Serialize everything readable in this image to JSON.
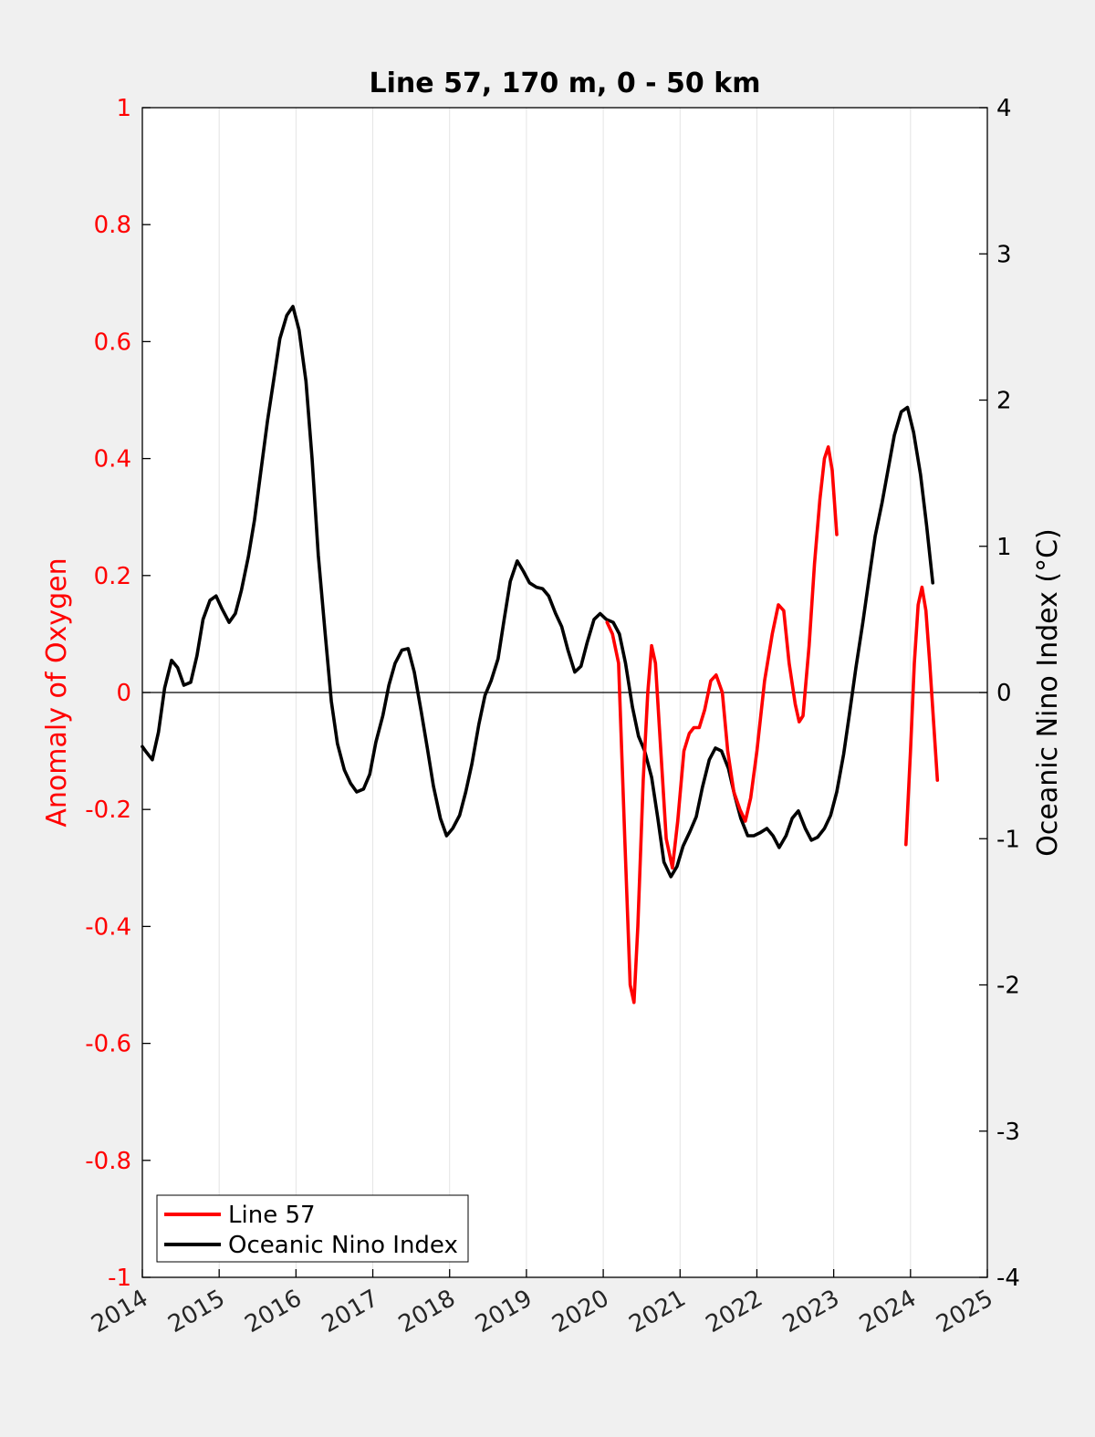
{
  "chart_data": {
    "type": "line",
    "title": "Line 57, 170 m, 0 - 50 km",
    "xlabel": "",
    "ylabel_left": "Anomaly of Oxygen",
    "ylabel_right": "Oceanic Nino Index (°C)",
    "xlim": [
      2014,
      2025
    ],
    "ylim_left": [
      -1,
      1
    ],
    "ylim_right": [
      -4,
      4
    ],
    "x_ticks": [
      "2014",
      "2015",
      "2016",
      "2017",
      "2018",
      "2019",
      "2020",
      "2021",
      "2022",
      "2023",
      "2024",
      "2025"
    ],
    "y_left_ticks": [
      "1",
      "0.8",
      "0.6",
      "0.4",
      "0.2",
      "0",
      "-0.2",
      "-0.4",
      "-0.6",
      "-0.8",
      "-1"
    ],
    "y_right_ticks": [
      "4",
      "3",
      "2",
      "1",
      "0",
      "-1",
      "-2",
      "-3",
      "-4"
    ],
    "grid": "vertical",
    "legend_position": "bottom-left",
    "colors": {
      "line57": "#ff0000",
      "oni": "#000000",
      "left_axis": "#ff0000",
      "right_axis": "#000000"
    },
    "series": [
      {
        "name": "Line 57",
        "axis": "left",
        "color": "#ff0000",
        "segments": [
          [
            [
              2020.05,
              0.12
            ],
            [
              2020.12,
              0.1
            ],
            [
              2020.2,
              0.05
            ],
            [
              2020.28,
              -0.25
            ],
            [
              2020.35,
              -0.5
            ],
            [
              2020.4,
              -0.53
            ],
            [
              2020.45,
              -0.4
            ],
            [
              2020.52,
              -0.15
            ],
            [
              2020.58,
              0.0
            ],
            [
              2020.63,
              0.08
            ],
            [
              2020.68,
              0.05
            ],
            [
              2020.75,
              -0.1
            ],
            [
              2020.82,
              -0.25
            ],
            [
              2020.9,
              -0.3
            ],
            [
              2020.97,
              -0.22
            ],
            [
              2021.05,
              -0.1
            ],
            [
              2021.12,
              -0.07
            ],
            [
              2021.18,
              -0.06
            ],
            [
              2021.25,
              -0.06
            ],
            [
              2021.32,
              -0.03
            ],
            [
              2021.4,
              0.02
            ],
            [
              2021.47,
              0.03
            ],
            [
              2021.55,
              0.0
            ],
            [
              2021.62,
              -0.1
            ],
            [
              2021.7,
              -0.17
            ],
            [
              2021.78,
              -0.2
            ],
            [
              2021.85,
              -0.22
            ],
            [
              2021.92,
              -0.18
            ],
            [
              2022.0,
              -0.1
            ],
            [
              2022.1,
              0.02
            ],
            [
              2022.2,
              0.1
            ],
            [
              2022.28,
              0.15
            ],
            [
              2022.35,
              0.14
            ],
            [
              2022.42,
              0.05
            ],
            [
              2022.5,
              -0.02
            ],
            [
              2022.55,
              -0.05
            ],
            [
              2022.6,
              -0.04
            ],
            [
              2022.68,
              0.08
            ],
            [
              2022.75,
              0.22
            ],
            [
              2022.82,
              0.33
            ],
            [
              2022.88,
              0.4
            ],
            [
              2022.93,
              0.42
            ],
            [
              2022.98,
              0.38
            ],
            [
              2023.04,
              0.27
            ]
          ],
          [
            [
              2023.94,
              -0.26
            ],
            [
              2024.0,
              -0.1
            ],
            [
              2024.05,
              0.05
            ],
            [
              2024.1,
              0.15
            ],
            [
              2024.15,
              0.18
            ],
            [
              2024.2,
              0.14
            ],
            [
              2024.25,
              0.05
            ],
            [
              2024.3,
              -0.05
            ],
            [
              2024.35,
              -0.15
            ]
          ]
        ]
      },
      {
        "name": "Oceanic Nino Index",
        "axis": "right",
        "color": "#000000",
        "segments": [
          [
            [
              2014.0,
              -0.37
            ],
            [
              2014.04,
              -0.4
            ],
            [
              2014.13,
              -0.46
            ],
            [
              2014.21,
              -0.27
            ],
            [
              2014.29,
              0.03
            ],
            [
              2014.38,
              0.22
            ],
            [
              2014.46,
              0.17
            ],
            [
              2014.54,
              0.05
            ],
            [
              2014.63,
              0.07
            ],
            [
              2014.71,
              0.25
            ],
            [
              2014.79,
              0.5
            ],
            [
              2014.88,
              0.63
            ],
            [
              2014.96,
              0.66
            ],
            [
              2015.04,
              0.57
            ],
            [
              2015.13,
              0.48
            ],
            [
              2015.21,
              0.54
            ],
            [
              2015.29,
              0.7
            ],
            [
              2015.38,
              0.93
            ],
            [
              2015.46,
              1.18
            ],
            [
              2015.54,
              1.5
            ],
            [
              2015.63,
              1.86
            ],
            [
              2015.71,
              2.14
            ],
            [
              2015.79,
              2.42
            ],
            [
              2015.88,
              2.58
            ],
            [
              2015.96,
              2.64
            ],
            [
              2016.04,
              2.48
            ],
            [
              2016.13,
              2.13
            ],
            [
              2016.21,
              1.6
            ],
            [
              2016.29,
              0.94
            ],
            [
              2016.38,
              0.4
            ],
            [
              2016.46,
              -0.06
            ],
            [
              2016.54,
              -0.35
            ],
            [
              2016.63,
              -0.53
            ],
            [
              2016.71,
              -0.62
            ],
            [
              2016.79,
              -0.68
            ],
            [
              2016.88,
              -0.66
            ],
            [
              2016.96,
              -0.56
            ],
            [
              2017.04,
              -0.34
            ],
            [
              2017.13,
              -0.16
            ],
            [
              2017.21,
              0.05
            ],
            [
              2017.29,
              0.2
            ],
            [
              2017.38,
              0.29
            ],
            [
              2017.46,
              0.3
            ],
            [
              2017.54,
              0.14
            ],
            [
              2017.63,
              -0.13
            ],
            [
              2017.71,
              -0.38
            ],
            [
              2017.79,
              -0.64
            ],
            [
              2017.88,
              -0.86
            ],
            [
              2017.96,
              -0.98
            ],
            [
              2018.04,
              -0.93
            ],
            [
              2018.13,
              -0.84
            ],
            [
              2018.21,
              -0.68
            ],
            [
              2018.29,
              -0.49
            ],
            [
              2018.38,
              -0.22
            ],
            [
              2018.46,
              -0.02
            ],
            [
              2018.54,
              0.08
            ],
            [
              2018.63,
              0.23
            ],
            [
              2018.71,
              0.5
            ],
            [
              2018.79,
              0.76
            ],
            [
              2018.88,
              0.9
            ],
            [
              2018.96,
              0.83
            ],
            [
              2019.04,
              0.75
            ],
            [
              2019.13,
              0.72
            ],
            [
              2019.21,
              0.71
            ],
            [
              2019.29,
              0.66
            ],
            [
              2019.38,
              0.54
            ],
            [
              2019.46,
              0.45
            ],
            [
              2019.54,
              0.29
            ],
            [
              2019.63,
              0.14
            ],
            [
              2019.71,
              0.18
            ],
            [
              2019.79,
              0.34
            ],
            [
              2019.88,
              0.5
            ],
            [
              2019.96,
              0.54
            ],
            [
              2020.04,
              0.5
            ],
            [
              2020.13,
              0.48
            ],
            [
              2020.21,
              0.4
            ],
            [
              2020.29,
              0.2
            ],
            [
              2020.38,
              -0.1
            ],
            [
              2020.46,
              -0.3
            ],
            [
              2020.54,
              -0.4
            ],
            [
              2020.63,
              -0.58
            ],
            [
              2020.71,
              -0.86
            ],
            [
              2020.79,
              -1.16
            ],
            [
              2020.88,
              -1.26
            ],
            [
              2020.96,
              -1.19
            ],
            [
              2021.04,
              -1.05
            ],
            [
              2021.13,
              -0.95
            ],
            [
              2021.21,
              -0.85
            ],
            [
              2021.29,
              -0.65
            ],
            [
              2021.38,
              -0.46
            ],
            [
              2021.46,
              -0.38
            ],
            [
              2021.54,
              -0.4
            ],
            [
              2021.63,
              -0.52
            ],
            [
              2021.71,
              -0.7
            ],
            [
              2021.79,
              -0.86
            ],
            [
              2021.88,
              -0.98
            ],
            [
              2021.96,
              -0.98
            ],
            [
              2022.04,
              -0.96
            ],
            [
              2022.13,
              -0.93
            ],
            [
              2022.21,
              -0.98
            ],
            [
              2022.29,
              -1.06
            ],
            [
              2022.38,
              -0.98
            ],
            [
              2022.46,
              -0.86
            ],
            [
              2022.54,
              -0.81
            ],
            [
              2022.63,
              -0.93
            ],
            [
              2022.71,
              -1.01
            ],
            [
              2022.79,
              -0.99
            ],
            [
              2022.88,
              -0.93
            ],
            [
              2022.96,
              -0.84
            ],
            [
              2023.04,
              -0.68
            ],
            [
              2023.13,
              -0.42
            ],
            [
              2023.21,
              -0.13
            ],
            [
              2023.29,
              0.17
            ],
            [
              2023.38,
              0.48
            ],
            [
              2023.46,
              0.78
            ],
            [
              2023.54,
              1.07
            ],
            [
              2023.63,
              1.3
            ],
            [
              2023.71,
              1.53
            ],
            [
              2023.79,
              1.76
            ],
            [
              2023.88,
              1.92
            ],
            [
              2023.96,
              1.95
            ],
            [
              2024.04,
              1.78
            ],
            [
              2024.13,
              1.49
            ],
            [
              2024.21,
              1.14
            ],
            [
              2024.29,
              0.75
            ]
          ]
        ]
      }
    ]
  }
}
